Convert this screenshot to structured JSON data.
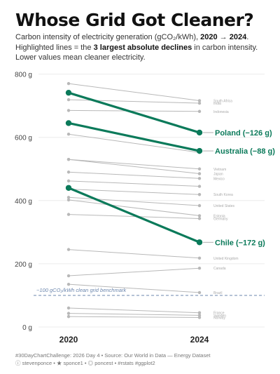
{
  "header": {
    "title": "Whose Grid Got Cleaner?",
    "sub_line1_pre": "Carbon intensity of electricity generation (gCO₂/kWh), ",
    "sub_year_start": "2020",
    "sub_arrow": " → ",
    "sub_year_end": "2024",
    "sub_line1_post": ".",
    "sub_line2_pre": "Highlighted lines = the ",
    "sub_line2_bold": "3 largest absolute declines",
    "sub_line2_post": " in carbon intensity.",
    "sub_line3": "Lower values mean cleaner electricity."
  },
  "footer": {
    "line1": "#30DayChartChallenge: 2026 Day 4 • Source: Our World in Data — Energy Dataset",
    "line2": "ⓘ stevenponce • ★ sponce1 • ◎ poncest • #rstats #ggplot2"
  },
  "chart_data": {
    "type": "line",
    "x": [
      "2020",
      "2024"
    ],
    "ylim": [
      0,
      820
    ],
    "yticks": [
      0,
      200,
      400,
      600,
      800
    ],
    "ytick_labels": [
      "0 g",
      "200 g",
      "400 g",
      "600 g",
      "800 g"
    ],
    "grid": true,
    "colors": {
      "highlight": "#0b7a5a",
      "context": "#b8b8b8",
      "benchmark": "#6b86ad"
    },
    "reference_line": {
      "value": 100,
      "label": "~100 gCO₂/kWh clean grid benchmark"
    },
    "highlighted": [
      {
        "name": "Poland",
        "values": [
          741,
          615
        ],
        "label": "Poland (−126 g)"
      },
      {
        "name": "Australia",
        "values": [
          645,
          557
        ],
        "label": "Australia (−88 g)"
      },
      {
        "name": "Chile",
        "values": [
          440,
          268
        ],
        "label": "Chile (−172 g)"
      }
    ],
    "context": [
      {
        "name": "South Africa",
        "values": [
          770,
          716
        ],
        "label": "South Africa"
      },
      {
        "name": "India",
        "values": [
          719,
          708
        ],
        "label": "India"
      },
      {
        "name": "Indonesia",
        "values": [
          685,
          682
        ],
        "label": "Indonesia"
      },
      {
        "name": "",
        "values": [
          610,
          552
        ],
        "label": ""
      },
      {
        "name": "Vietnam",
        "values": [
          530,
          500
        ],
        "label": "Vietnam"
      },
      {
        "name": "Japan",
        "values": [
          530,
          485
        ],
        "label": "Japan"
      },
      {
        "name": "Mexico",
        "values": [
          490,
          470
        ],
        "label": "Mexico"
      },
      {
        "name": "",
        "values": [
          462,
          445
        ],
        "label": ""
      },
      {
        "name": "South Korea",
        "values": [
          436,
          419
        ],
        "label": "South Korea"
      },
      {
        "name": "United States",
        "values": [
          410,
          384
        ],
        "label": "United States"
      },
      {
        "name": "Estonia",
        "values": [
          402,
          352
        ],
        "label": "Estonia"
      },
      {
        "name": "Germany",
        "values": [
          356,
          343
        ],
        "label": "Germany"
      },
      {
        "name": "United Kingdom",
        "values": [
          245,
          218
        ],
        "label": "United Kingdom"
      },
      {
        "name": "Canada",
        "values": [
          162,
          186
        ],
        "label": "Canada"
      },
      {
        "name": "Brazil",
        "values": [
          135,
          109
        ],
        "label": "Brazil"
      },
      {
        "name": "France",
        "values": [
          60,
          45
        ],
        "label": "France"
      },
      {
        "name": "Sweden",
        "values": [
          43,
          37
        ],
        "label": "Sweden"
      },
      {
        "name": "Norway",
        "values": [
          33,
          30
        ],
        "label": "Norway"
      }
    ]
  }
}
